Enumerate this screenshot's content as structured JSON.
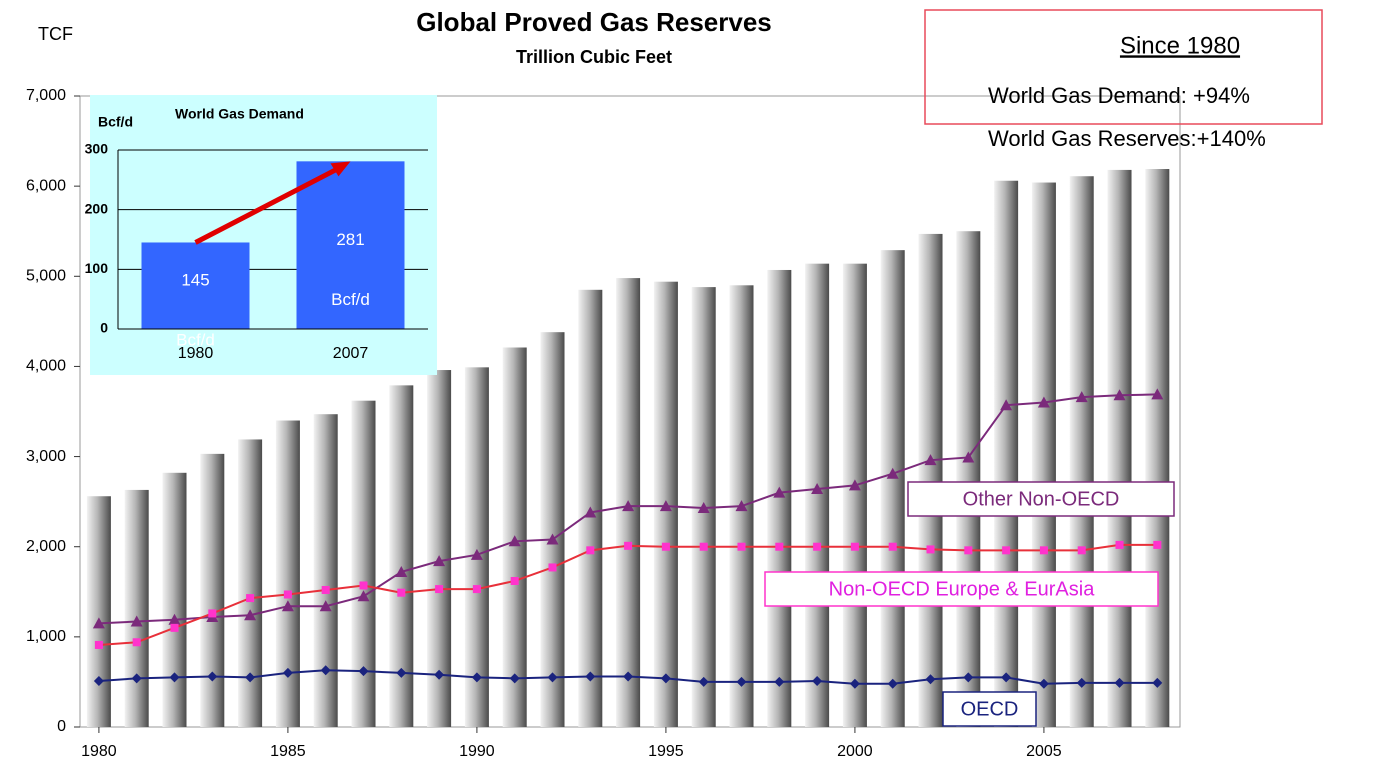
{
  "chart_data": [
    {
      "type": "bar_line",
      "title": "Global Proved Gas Reserves",
      "subtitle": "Trillion Cubic Feet",
      "y_label": "TCF",
      "x": [
        1980,
        1981,
        1982,
        1983,
        1984,
        1985,
        1986,
        1987,
        1988,
        1989,
        1990,
        1991,
        1992,
        1993,
        1994,
        1995,
        1996,
        1997,
        1998,
        1999,
        2000,
        2001,
        2002,
        2003,
        2004,
        2005,
        2006,
        2007,
        2008
      ],
      "xlim": [
        1979.5,
        2008.6
      ],
      "xticks": [
        1980,
        1985,
        1990,
        1995,
        2000,
        2005
      ],
      "ylim": [
        0,
        7000
      ],
      "yticks": [
        0,
        {
          "value": 1000,
          "label": "1,000"
        },
        {
          "value": 2000,
          "label": "2,000"
        },
        {
          "value": 3000,
          "label": "3,000"
        },
        {
          "value": 4000,
          "label": "4,000"
        },
        {
          "value": 5000,
          "label": "5,000"
        },
        {
          "value": 6000,
          "label": "6,000"
        },
        {
          "value": 7000,
          "label": "7,000"
        }
      ],
      "series": [
        {
          "type": "bar",
          "color": "#9a9a9a",
          "values": [
            2560,
            2630,
            2820,
            3030,
            3190,
            3400,
            3470,
            3620,
            3790,
            3960,
            3990,
            4210,
            4380,
            4850,
            4980,
            4940,
            4880,
            4900,
            5070,
            5140,
            5140,
            5290,
            5470,
            5500,
            6060,
            6040,
            6110,
            6180,
            6190
          ]
        },
        {
          "type": "line",
          "name": "Other Non-OECD",
          "color": "#7b2a7b",
          "marker": "triangle",
          "marker_color": "#7b2a7b",
          "values": [
            1150,
            1170,
            1190,
            1220,
            1240,
            1340,
            1340,
            1450,
            1720,
            1840,
            1910,
            2060,
            2080,
            2380,
            2450,
            2450,
            2430,
            2450,
            2600,
            2640,
            2680,
            2810,
            2960,
            2990,
            3570,
            3600,
            3660,
            3680,
            3690
          ]
        },
        {
          "type": "line",
          "name": "Non-OECD Europe & EurAsia",
          "color": "#e8303a",
          "marker": "square",
          "marker_color": "#ff33cc",
          "values": [
            910,
            940,
            1100,
            1260,
            1430,
            1470,
            1520,
            1570,
            1490,
            1530,
            1530,
            1620,
            1770,
            1960,
            2010,
            2000,
            2000,
            2000,
            2000,
            2000,
            2000,
            2000,
            1970,
            1960,
            1960,
            1960,
            1960,
            2020,
            2020
          ]
        },
        {
          "type": "line",
          "name": "OECD",
          "color": "#1a237e",
          "marker": "diamond",
          "marker_color": "#1a237e",
          "values": [
            510,
            540,
            550,
            560,
            550,
            600,
            630,
            620,
            600,
            580,
            550,
            540,
            550,
            560,
            560,
            540,
            500,
            500,
            500,
            510,
            480,
            480,
            530,
            550,
            550,
            480,
            490,
            490,
            490
          ]
        }
      ],
      "annotation": {
        "title": "Since 1980",
        "lines": [
          "World Gas Demand: +94%",
          "World Gas Reserves:+140%"
        ]
      }
    },
    {
      "type": "bar",
      "title": "World Gas Demand",
      "y_label": "Bcf/d",
      "categories": [
        "1980",
        "2007"
      ],
      "values": [
        145,
        281
      ],
      "value_labels": [
        "145 Bcf/d",
        "281 Bcf/d"
      ],
      "color": "#3366ff",
      "ylim": [
        0,
        300
      ],
      "yticks": [
        0,
        100,
        200,
        300
      ]
    }
  ]
}
